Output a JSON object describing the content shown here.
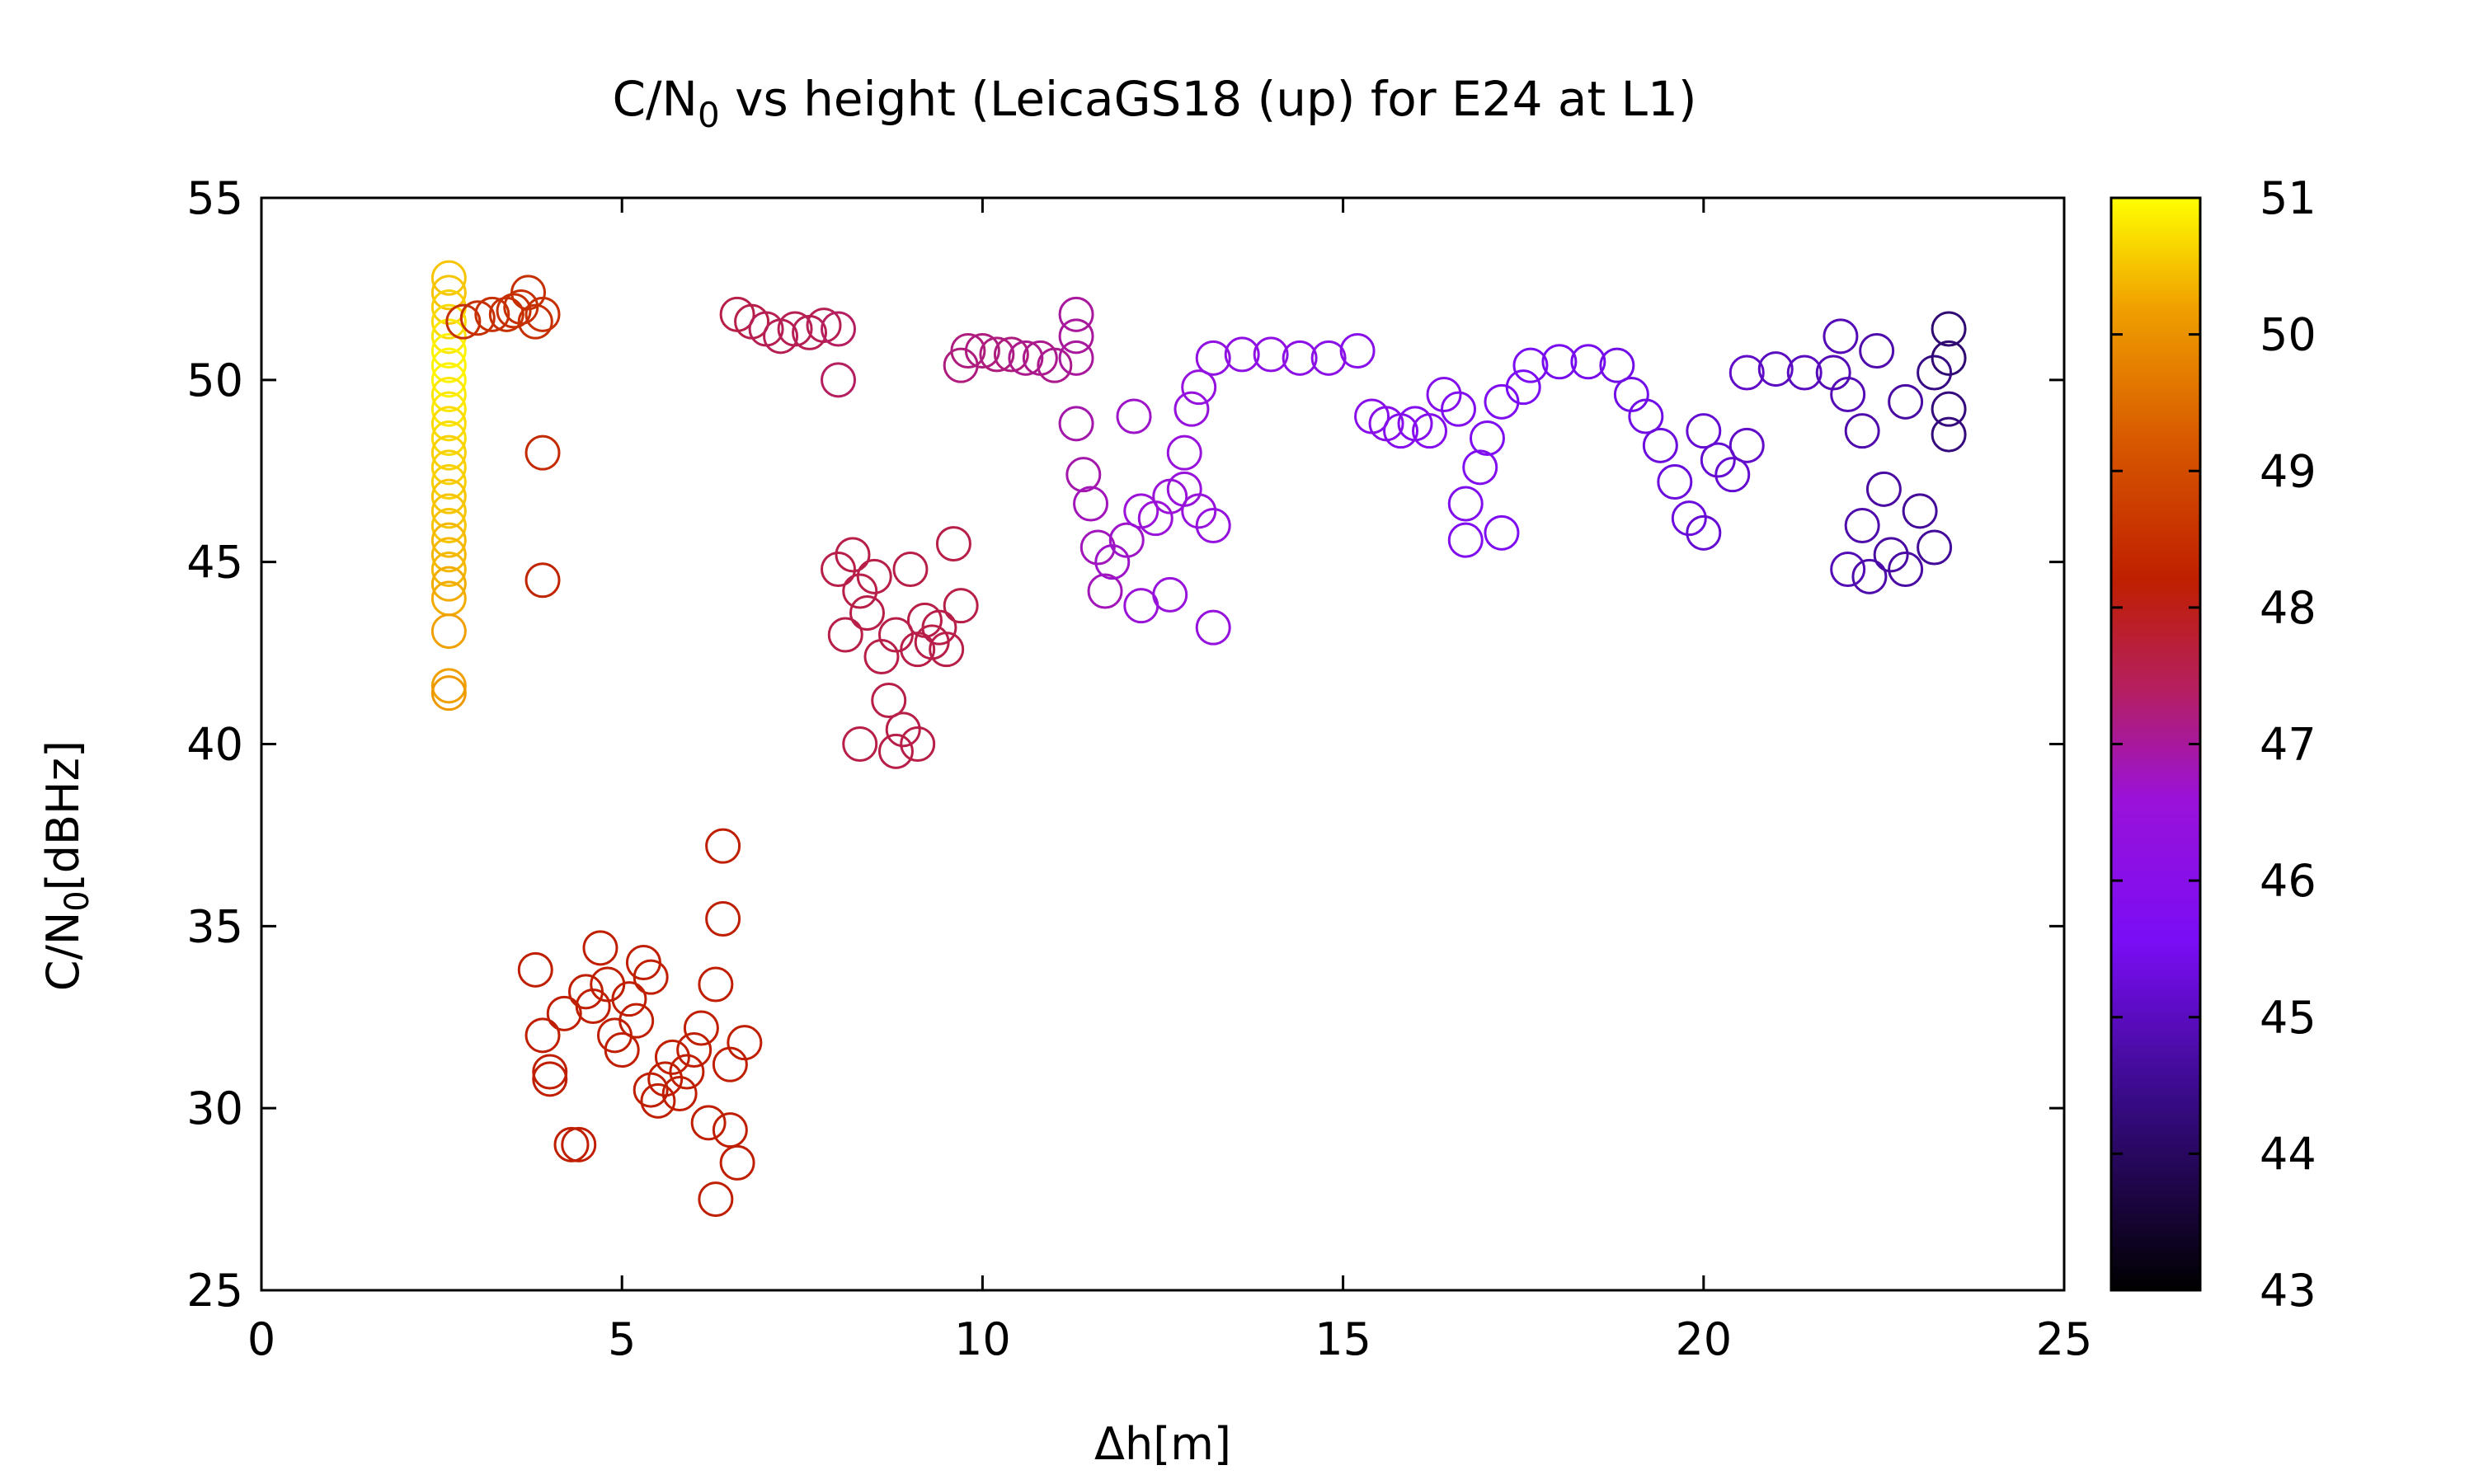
{
  "chart_data": {
    "type": "scatter",
    "title": {
      "pre": "C/N",
      "sub": "0",
      "post": " vs height (LeicaGS18 (up) for E24 at L1)"
    },
    "xlabel": "Δh[m]",
    "ylabel": {
      "pre": "C/N",
      "sub": "0",
      "post": "[dBHz]"
    },
    "xlim": [
      0,
      25
    ],
    "ylim": [
      25,
      55
    ],
    "xticks": [
      0,
      5,
      10,
      15,
      20,
      25
    ],
    "yticks": [
      25,
      30,
      35,
      40,
      45,
      50,
      55
    ],
    "colorbar": {
      "range": [
        43,
        51
      ],
      "ticks": [
        43,
        44,
        45,
        46,
        47,
        48,
        49,
        50,
        51
      ],
      "palette": "black-purple-red-orange-yellow"
    },
    "marker": "open-circle",
    "grid": false,
    "legend": "none",
    "series_note": "color encodes elevation-dependent value per colorbar",
    "points": [
      {
        "x": 2.6,
        "y": 52.8,
        "c": 50.5
      },
      {
        "x": 2.6,
        "y": 52.4,
        "c": 50.5
      },
      {
        "x": 2.6,
        "y": 52.0,
        "c": 50.6
      },
      {
        "x": 2.6,
        "y": 51.6,
        "c": 50.7
      },
      {
        "x": 2.6,
        "y": 51.2,
        "c": 50.8
      },
      {
        "x": 2.6,
        "y": 50.8,
        "c": 50.9
      },
      {
        "x": 2.6,
        "y": 50.4,
        "c": 50.9
      },
      {
        "x": 2.6,
        "y": 50.0,
        "c": 50.9
      },
      {
        "x": 2.6,
        "y": 49.6,
        "c": 50.8
      },
      {
        "x": 2.6,
        "y": 49.2,
        "c": 50.8
      },
      {
        "x": 2.6,
        "y": 48.8,
        "c": 50.7
      },
      {
        "x": 2.6,
        "y": 48.4,
        "c": 50.7
      },
      {
        "x": 2.6,
        "y": 48.0,
        "c": 50.6
      },
      {
        "x": 2.6,
        "y": 47.6,
        "c": 50.6
      },
      {
        "x": 2.6,
        "y": 47.2,
        "c": 50.6
      },
      {
        "x": 2.6,
        "y": 46.8,
        "c": 50.5
      },
      {
        "x": 2.6,
        "y": 46.4,
        "c": 50.5
      },
      {
        "x": 2.6,
        "y": 46.0,
        "c": 50.5
      },
      {
        "x": 2.6,
        "y": 45.6,
        "c": 50.4
      },
      {
        "x": 2.6,
        "y": 45.2,
        "c": 50.4
      },
      {
        "x": 2.6,
        "y": 44.8,
        "c": 50.4
      },
      {
        "x": 2.6,
        "y": 44.4,
        "c": 50.3
      },
      {
        "x": 2.6,
        "y": 44.0,
        "c": 50.3
      },
      {
        "x": 2.6,
        "y": 43.1,
        "c": 50.2
      },
      {
        "x": 2.6,
        "y": 41.6,
        "c": 50.2
      },
      {
        "x": 2.6,
        "y": 41.4,
        "c": 50.1
      },
      {
        "x": 2.8,
        "y": 51.6,
        "c": 48.5
      },
      {
        "x": 3.0,
        "y": 51.7,
        "c": 48.5
      },
      {
        "x": 3.2,
        "y": 51.8,
        "c": 48.5
      },
      {
        "x": 3.4,
        "y": 51.8,
        "c": 48.5
      },
      {
        "x": 3.6,
        "y": 52.0,
        "c": 48.5
      },
      {
        "x": 3.7,
        "y": 52.4,
        "c": 48.5
      },
      {
        "x": 3.8,
        "y": 51.6,
        "c": 48.5
      },
      {
        "x": 3.9,
        "y": 51.8,
        "c": 48.5
      },
      {
        "x": 3.5,
        "y": 51.9,
        "c": 48.5
      },
      {
        "x": 3.9,
        "y": 48.0,
        "c": 48.4
      },
      {
        "x": 3.9,
        "y": 44.5,
        "c": 48.3
      },
      {
        "x": 3.8,
        "y": 33.8,
        "c": 48.2
      },
      {
        "x": 3.9,
        "y": 32.0,
        "c": 48.2
      },
      {
        "x": 4.0,
        "y": 31.0,
        "c": 48.2
      },
      {
        "x": 4.0,
        "y": 30.8,
        "c": 48.2
      },
      {
        "x": 4.2,
        "y": 32.6,
        "c": 48.2
      },
      {
        "x": 4.3,
        "y": 29.0,
        "c": 48.2
      },
      {
        "x": 4.4,
        "y": 29.0,
        "c": 48.2
      },
      {
        "x": 4.5,
        "y": 33.2,
        "c": 48.2
      },
      {
        "x": 4.6,
        "y": 32.8,
        "c": 48.2
      },
      {
        "x": 4.7,
        "y": 34.4,
        "c": 48.2
      },
      {
        "x": 4.8,
        "y": 33.4,
        "c": 48.2
      },
      {
        "x": 4.9,
        "y": 32.0,
        "c": 48.2
      },
      {
        "x": 5.0,
        "y": 31.6,
        "c": 48.2
      },
      {
        "x": 5.1,
        "y": 33.0,
        "c": 48.2
      },
      {
        "x": 5.2,
        "y": 32.4,
        "c": 48.2
      },
      {
        "x": 5.3,
        "y": 34.0,
        "c": 48.2
      },
      {
        "x": 5.4,
        "y": 33.6,
        "c": 48.2
      },
      {
        "x": 5.4,
        "y": 30.5,
        "c": 48.2
      },
      {
        "x": 5.5,
        "y": 30.2,
        "c": 48.2
      },
      {
        "x": 5.6,
        "y": 30.8,
        "c": 48.2
      },
      {
        "x": 5.7,
        "y": 31.4,
        "c": 48.2
      },
      {
        "x": 5.8,
        "y": 30.4,
        "c": 48.2
      },
      {
        "x": 5.9,
        "y": 31.0,
        "c": 48.2
      },
      {
        "x": 6.0,
        "y": 31.6,
        "c": 48.2
      },
      {
        "x": 6.1,
        "y": 32.2,
        "c": 48.2
      },
      {
        "x": 6.2,
        "y": 29.6,
        "c": 48.2
      },
      {
        "x": 6.3,
        "y": 27.5,
        "c": 48.2
      },
      {
        "x": 6.3,
        "y": 33.4,
        "c": 48.2
      },
      {
        "x": 6.4,
        "y": 35.2,
        "c": 48.2
      },
      {
        "x": 6.4,
        "y": 37.2,
        "c": 48.2
      },
      {
        "x": 6.5,
        "y": 31.2,
        "c": 48.2
      },
      {
        "x": 6.5,
        "y": 29.4,
        "c": 48.2
      },
      {
        "x": 6.6,
        "y": 28.5,
        "c": 48.2
      },
      {
        "x": 6.7,
        "y": 31.8,
        "c": 48.2
      },
      {
        "x": 6.6,
        "y": 51.8,
        "c": 47.6
      },
      {
        "x": 6.8,
        "y": 51.6,
        "c": 47.6
      },
      {
        "x": 7.0,
        "y": 51.4,
        "c": 47.5
      },
      {
        "x": 7.2,
        "y": 51.2,
        "c": 47.5
      },
      {
        "x": 7.4,
        "y": 51.4,
        "c": 47.5
      },
      {
        "x": 7.6,
        "y": 51.3,
        "c": 47.5
      },
      {
        "x": 7.8,
        "y": 51.5,
        "c": 47.5
      },
      {
        "x": 8.0,
        "y": 51.4,
        "c": 47.4
      },
      {
        "x": 8.0,
        "y": 50.0,
        "c": 47.4
      },
      {
        "x": 8.0,
        "y": 44.8,
        "c": 47.6
      },
      {
        "x": 8.1,
        "y": 43.0,
        "c": 47.6
      },
      {
        "x": 8.2,
        "y": 45.2,
        "c": 47.6
      },
      {
        "x": 8.3,
        "y": 44.2,
        "c": 47.6
      },
      {
        "x": 8.3,
        "y": 40.0,
        "c": 47.6
      },
      {
        "x": 8.4,
        "y": 43.6,
        "c": 47.6
      },
      {
        "x": 8.5,
        "y": 44.6,
        "c": 47.6
      },
      {
        "x": 8.6,
        "y": 42.4,
        "c": 47.6
      },
      {
        "x": 8.7,
        "y": 41.2,
        "c": 47.6
      },
      {
        "x": 8.8,
        "y": 43.0,
        "c": 47.6
      },
      {
        "x": 8.8,
        "y": 39.8,
        "c": 47.6
      },
      {
        "x": 8.9,
        "y": 40.4,
        "c": 47.6
      },
      {
        "x": 9.0,
        "y": 44.8,
        "c": 47.6
      },
      {
        "x": 9.1,
        "y": 42.6,
        "c": 47.6
      },
      {
        "x": 9.1,
        "y": 40.0,
        "c": 47.6
      },
      {
        "x": 9.2,
        "y": 43.4,
        "c": 47.6
      },
      {
        "x": 9.3,
        "y": 42.8,
        "c": 47.6
      },
      {
        "x": 9.4,
        "y": 43.2,
        "c": 47.6
      },
      {
        "x": 9.5,
        "y": 42.6,
        "c": 47.6
      },
      {
        "x": 9.6,
        "y": 45.5,
        "c": 47.6
      },
      {
        "x": 9.7,
        "y": 43.8,
        "c": 47.6
      },
      {
        "x": 9.7,
        "y": 50.4,
        "c": 47.2
      },
      {
        "x": 9.8,
        "y": 50.8,
        "c": 47.2
      },
      {
        "x": 10.0,
        "y": 50.8,
        "c": 47.2
      },
      {
        "x": 10.2,
        "y": 50.7,
        "c": 47.2
      },
      {
        "x": 10.4,
        "y": 50.7,
        "c": 47.2
      },
      {
        "x": 10.6,
        "y": 50.6,
        "c": 47.1
      },
      {
        "x": 10.8,
        "y": 50.6,
        "c": 47.1
      },
      {
        "x": 11.0,
        "y": 50.4,
        "c": 47.1
      },
      {
        "x": 11.3,
        "y": 51.8,
        "c": 47.0
      },
      {
        "x": 11.3,
        "y": 51.2,
        "c": 47.0
      },
      {
        "x": 11.3,
        "y": 50.6,
        "c": 47.0
      },
      {
        "x": 11.3,
        "y": 48.8,
        "c": 46.9
      },
      {
        "x": 11.4,
        "y": 47.4,
        "c": 46.9
      },
      {
        "x": 11.5,
        "y": 46.6,
        "c": 46.8
      },
      {
        "x": 11.6,
        "y": 45.4,
        "c": 46.8
      },
      {
        "x": 11.7,
        "y": 44.2,
        "c": 46.8
      },
      {
        "x": 11.8,
        "y": 45.0,
        "c": 46.7
      },
      {
        "x": 12.0,
        "y": 45.6,
        "c": 46.7
      },
      {
        "x": 12.1,
        "y": 49.0,
        "c": 46.7
      },
      {
        "x": 12.2,
        "y": 46.4,
        "c": 46.6
      },
      {
        "x": 12.2,
        "y": 43.8,
        "c": 46.6
      },
      {
        "x": 12.4,
        "y": 46.2,
        "c": 46.6
      },
      {
        "x": 12.6,
        "y": 46.8,
        "c": 46.6
      },
      {
        "x": 12.6,
        "y": 44.1,
        "c": 46.5
      },
      {
        "x": 12.8,
        "y": 47.0,
        "c": 46.5
      },
      {
        "x": 12.8,
        "y": 48.0,
        "c": 46.5
      },
      {
        "x": 13.0,
        "y": 46.4,
        "c": 46.5
      },
      {
        "x": 13.2,
        "y": 43.2,
        "c": 46.4
      },
      {
        "x": 13.2,
        "y": 46.0,
        "c": 46.4
      },
      {
        "x": 13.0,
        "y": 49.8,
        "c": 46.4
      },
      {
        "x": 12.9,
        "y": 49.2,
        "c": 46.4
      },
      {
        "x": 13.2,
        "y": 50.6,
        "c": 46.3
      },
      {
        "x": 13.6,
        "y": 50.7,
        "c": 46.2
      },
      {
        "x": 14.0,
        "y": 50.7,
        "c": 46.2
      },
      {
        "x": 14.4,
        "y": 50.6,
        "c": 46.1
      },
      {
        "x": 14.8,
        "y": 50.6,
        "c": 46.1
      },
      {
        "x": 15.2,
        "y": 50.8,
        "c": 46.0
      },
      {
        "x": 15.4,
        "y": 49.0,
        "c": 46.0
      },
      {
        "x": 15.6,
        "y": 48.8,
        "c": 46.0
      },
      {
        "x": 15.8,
        "y": 48.6,
        "c": 45.9
      },
      {
        "x": 16.0,
        "y": 48.8,
        "c": 45.9
      },
      {
        "x": 16.2,
        "y": 48.6,
        "c": 45.9
      },
      {
        "x": 16.4,
        "y": 49.6,
        "c": 45.9
      },
      {
        "x": 16.6,
        "y": 49.2,
        "c": 45.8
      },
      {
        "x": 16.7,
        "y": 46.6,
        "c": 45.8
      },
      {
        "x": 16.7,
        "y": 45.6,
        "c": 45.8
      },
      {
        "x": 16.9,
        "y": 47.6,
        "c": 45.8
      },
      {
        "x": 17.0,
        "y": 48.4,
        "c": 45.7
      },
      {
        "x": 17.2,
        "y": 45.8,
        "c": 45.7
      },
      {
        "x": 17.2,
        "y": 49.4,
        "c": 45.7
      },
      {
        "x": 17.5,
        "y": 49.8,
        "c": 45.6
      },
      {
        "x": 17.6,
        "y": 50.4,
        "c": 45.6
      },
      {
        "x": 18.0,
        "y": 50.5,
        "c": 45.5
      },
      {
        "x": 18.4,
        "y": 50.5,
        "c": 45.5
      },
      {
        "x": 18.8,
        "y": 50.4,
        "c": 45.4
      },
      {
        "x": 19.0,
        "y": 49.6,
        "c": 45.4
      },
      {
        "x": 19.2,
        "y": 49.0,
        "c": 45.4
      },
      {
        "x": 19.4,
        "y": 48.2,
        "c": 45.3
      },
      {
        "x": 19.6,
        "y": 47.2,
        "c": 45.3
      },
      {
        "x": 19.8,
        "y": 46.2,
        "c": 45.3
      },
      {
        "x": 20.0,
        "y": 45.8,
        "c": 45.2
      },
      {
        "x": 20.0,
        "y": 48.6,
        "c": 45.2
      },
      {
        "x": 20.2,
        "y": 47.8,
        "c": 45.2
      },
      {
        "x": 20.4,
        "y": 47.4,
        "c": 45.2
      },
      {
        "x": 20.6,
        "y": 48.2,
        "c": 45.1
      },
      {
        "x": 20.6,
        "y": 50.2,
        "c": 45.1
      },
      {
        "x": 21.0,
        "y": 50.3,
        "c": 45.0
      },
      {
        "x": 21.4,
        "y": 50.2,
        "c": 45.0
      },
      {
        "x": 21.8,
        "y": 50.2,
        "c": 44.9
      },
      {
        "x": 21.9,
        "y": 51.2,
        "c": 44.9
      },
      {
        "x": 22.0,
        "y": 49.6,
        "c": 44.9
      },
      {
        "x": 22.0,
        "y": 44.8,
        "c": 44.9
      },
      {
        "x": 22.2,
        "y": 48.6,
        "c": 44.8
      },
      {
        "x": 22.2,
        "y": 46.0,
        "c": 44.8
      },
      {
        "x": 22.3,
        "y": 44.6,
        "c": 44.8
      },
      {
        "x": 22.4,
        "y": 50.8,
        "c": 44.8
      },
      {
        "x": 22.5,
        "y": 47.0,
        "c": 44.7
      },
      {
        "x": 22.6,
        "y": 45.2,
        "c": 44.7
      },
      {
        "x": 22.8,
        "y": 49.4,
        "c": 44.7
      },
      {
        "x": 22.8,
        "y": 44.8,
        "c": 44.7
      },
      {
        "x": 23.0,
        "y": 46.4,
        "c": 44.6
      },
      {
        "x": 23.2,
        "y": 45.4,
        "c": 44.6
      },
      {
        "x": 23.2,
        "y": 50.2,
        "c": 44.4
      },
      {
        "x": 23.4,
        "y": 51.4,
        "c": 44.2
      },
      {
        "x": 23.4,
        "y": 50.6,
        "c": 44.2
      },
      {
        "x": 23.4,
        "y": 49.2,
        "c": 44.3
      },
      {
        "x": 23.4,
        "y": 48.5,
        "c": 44.3
      }
    ]
  }
}
